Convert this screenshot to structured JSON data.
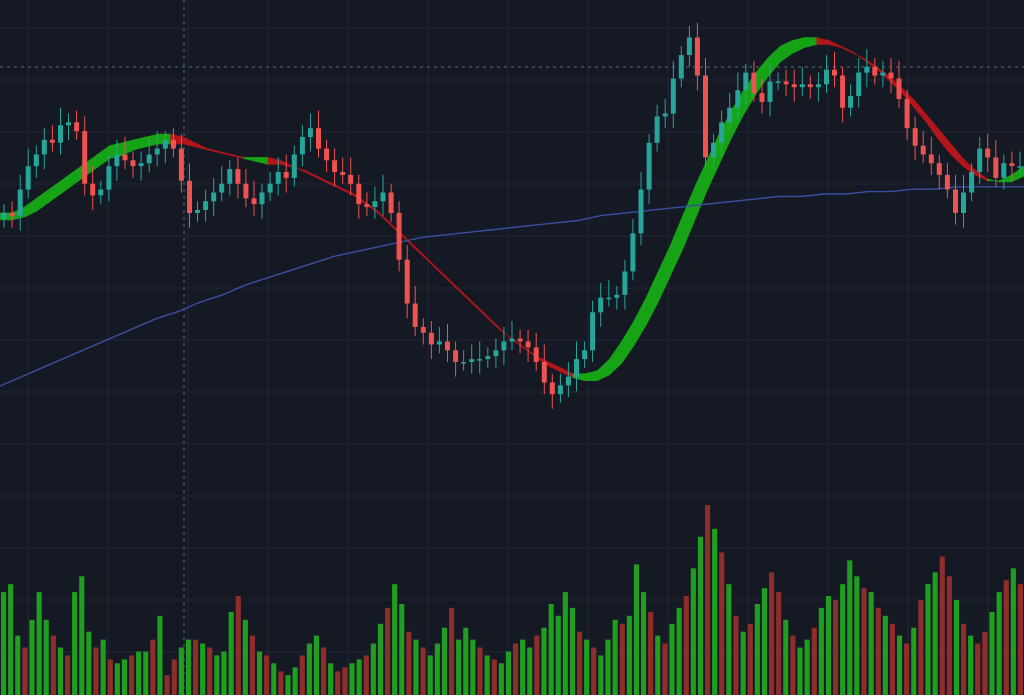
{
  "colors": {
    "background": "#151924",
    "grid": "#232838",
    "up_candle": "#26a69a",
    "down_candle": "#ef5350",
    "ribbon_up": "#16a316",
    "ribbon_down": "#b3161a",
    "slow_ma": "#3a4fa2",
    "volume_up": "#1f9e1f",
    "volume_down": "#8f2d2d",
    "crosshair": "#5c6a80"
  },
  "chart_data": {
    "type": "candlestick",
    "title": "",
    "xlabel": "",
    "ylabel": "",
    "grid": true,
    "ylim": [
      0,
      100
    ],
    "candles_close": [
      84,
      83,
      92,
      100,
      104,
      109,
      108,
      114,
      115,
      112,
      94,
      90,
      92,
      100,
      104,
      102,
      100,
      101,
      104,
      106,
      109,
      106,
      95,
      84,
      85,
      88,
      91,
      94,
      99,
      94,
      89,
      87,
      91,
      94,
      98,
      96,
      104,
      110,
      113,
      106,
      102,
      98,
      97,
      94,
      87,
      86,
      88,
      91,
      84,
      68,
      53,
      45,
      43,
      39,
      40,
      37,
      33,
      33,
      34,
      34,
      35,
      37,
      40,
      41,
      40,
      38,
      33,
      26,
      22,
      25,
      28,
      34,
      37,
      50,
      55,
      55,
      56,
      64,
      77,
      92,
      108,
      117,
      118,
      130,
      138,
      144,
      131,
      103,
      108,
      115,
      120,
      126,
      132,
      125,
      122,
      129,
      129,
      128,
      127,
      128,
      127,
      128,
      133,
      131,
      120,
      124,
      132,
      134,
      131,
      132,
      130,
      123,
      113,
      107,
      104,
      101,
      97,
      92,
      84,
      91,
      98,
      106,
      103,
      96,
      101,
      100,
      100
    ],
    "ribbon_fast": [
      84,
      84,
      86,
      89,
      92,
      95,
      98,
      101,
      104,
      107,
      108,
      109,
      110,
      111,
      111,
      110,
      108,
      106,
      105,
      104,
      103,
      103,
      103,
      102,
      100,
      98,
      96,
      94,
      92,
      90,
      87,
      84,
      80,
      76,
      72,
      68,
      64,
      60,
      56,
      52,
      48,
      44,
      41,
      38,
      35,
      33,
      31,
      29,
      29,
      30,
      34,
      40,
      47,
      55,
      64,
      73,
      83,
      93,
      102,
      111,
      119,
      126,
      132,
      137,
      141,
      143,
      144,
      144,
      143,
      141,
      139,
      136,
      133,
      129,
      125,
      120,
      115,
      109,
      104,
      100,
      97,
      95,
      95,
      97,
      100
    ],
    "ribbon_slow": [
      84,
      84,
      85,
      87,
      90,
      93,
      96,
      99,
      102,
      105,
      106,
      108,
      109,
      110,
      110,
      110,
      109,
      108,
      107,
      106,
      105,
      104,
      103,
      103,
      102,
      101,
      99,
      97,
      95,
      93,
      90,
      87,
      83,
      79,
      75,
      71,
      67,
      63,
      59,
      55,
      51,
      47,
      43,
      40,
      37,
      34,
      32,
      30,
      29,
      29,
      31,
      35,
      41,
      48,
      56,
      65,
      74,
      84,
      94,
      103,
      112,
      120,
      127,
      133,
      138,
      141,
      143,
      144,
      144,
      143,
      141,
      139,
      136,
      133,
      129,
      125,
      120,
      115,
      110,
      105,
      101,
      98,
      97,
      97,
      99
    ],
    "ma_slow": [
      10,
      14,
      18,
      22,
      26,
      30,
      34,
      38,
      41,
      45,
      48,
      52,
      55,
      58,
      61,
      64,
      66,
      68,
      70,
      72,
      73,
      74,
      75,
      76,
      77,
      78,
      79,
      81,
      82,
      83,
      84,
      85,
      86,
      87,
      88,
      89,
      89,
      90,
      90,
      91,
      91,
      92,
      92,
      93,
      93,
      93,
      93
    ],
    "volume": [
      26,
      28,
      15,
      12,
      19,
      26,
      19,
      15,
      12,
      10,
      26,
      30,
      16,
      12,
      14,
      9,
      8,
      9,
      10,
      11,
      11,
      14,
      20,
      5,
      9,
      12,
      14,
      14,
      13,
      12,
      10,
      11,
      21,
      25,
      19,
      15,
      11,
      10,
      8,
      6,
      5,
      7,
      10,
      13,
      15,
      12,
      8,
      6,
      7,
      8,
      9,
      10,
      13,
      18,
      22,
      28,
      23,
      16,
      14,
      12,
      10,
      13,
      17,
      22,
      14,
      17,
      14,
      12,
      10,
      9,
      8,
      11,
      13,
      14,
      12,
      15,
      17,
      23,
      20,
      26,
      22,
      16,
      14,
      12,
      10,
      14,
      19,
      18,
      20,
      33,
      26,
      21,
      15,
      13,
      18,
      22,
      25,
      32,
      40,
      48,
      42,
      36,
      28,
      20,
      16,
      18,
      23,
      27,
      31,
      26,
      19,
      15,
      12,
      14,
      17,
      22,
      25,
      24,
      28,
      34,
      30,
      27,
      26,
      22,
      20,
      18,
      15,
      13,
      17,
      24,
      28,
      31,
      35,
      30,
      24,
      18,
      15,
      13,
      16,
      21,
      26,
      29,
      32,
      28
    ]
  }
}
